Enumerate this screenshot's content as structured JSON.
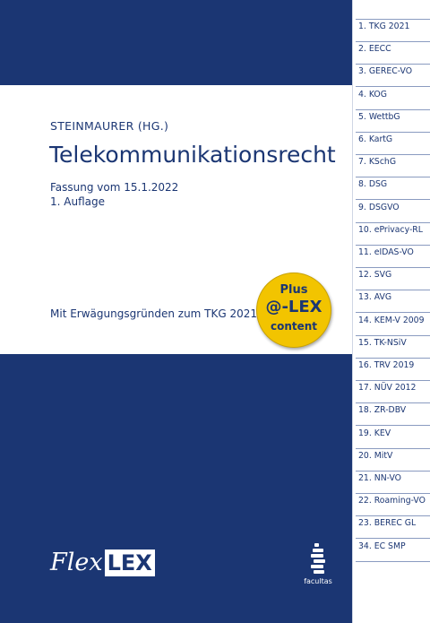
{
  "cover": {
    "author": "STEINMAURER (HG.)",
    "title": "Telekommunikationsrecht",
    "edition_line1": "Fassung vom 15.1.2022",
    "edition_line2": "1. Auflage",
    "note": "Mit Erwägungsgründen zum TKG 2021",
    "badge": {
      "line1": "Plus",
      "line2": "@-LEX",
      "line3": "content"
    },
    "brand": {
      "part1": "Flex",
      "part2": "LEX"
    },
    "publisher": "facultas"
  },
  "colors": {
    "navy": "#1b3673",
    "badge_yellow": "#f2c400",
    "white": "#ffffff"
  },
  "tabs": [
    "1.  TKG 2021",
    "2.  EECC",
    "3.  GEREC-VO",
    "4.  KOG",
    "5.  WettbG",
    "6.  KartG",
    "7.  KSchG",
    "8.  DSG",
    "9.  DSGVO",
    "10. ePrivacy-RL",
    "11. eIDAS-VO",
    "12. SVG",
    "13. AVG",
    "14. KEM-V 2009",
    "15. TK-NSiV",
    "16. TRV 2019",
    "17. NÜV 2012",
    "18. ZR-DBV",
    "19. KEV",
    "20. MitV",
    "21. NN-VO",
    "22. Roaming-VO",
    "23. BEREC GL",
    "34. EC SMP"
  ]
}
